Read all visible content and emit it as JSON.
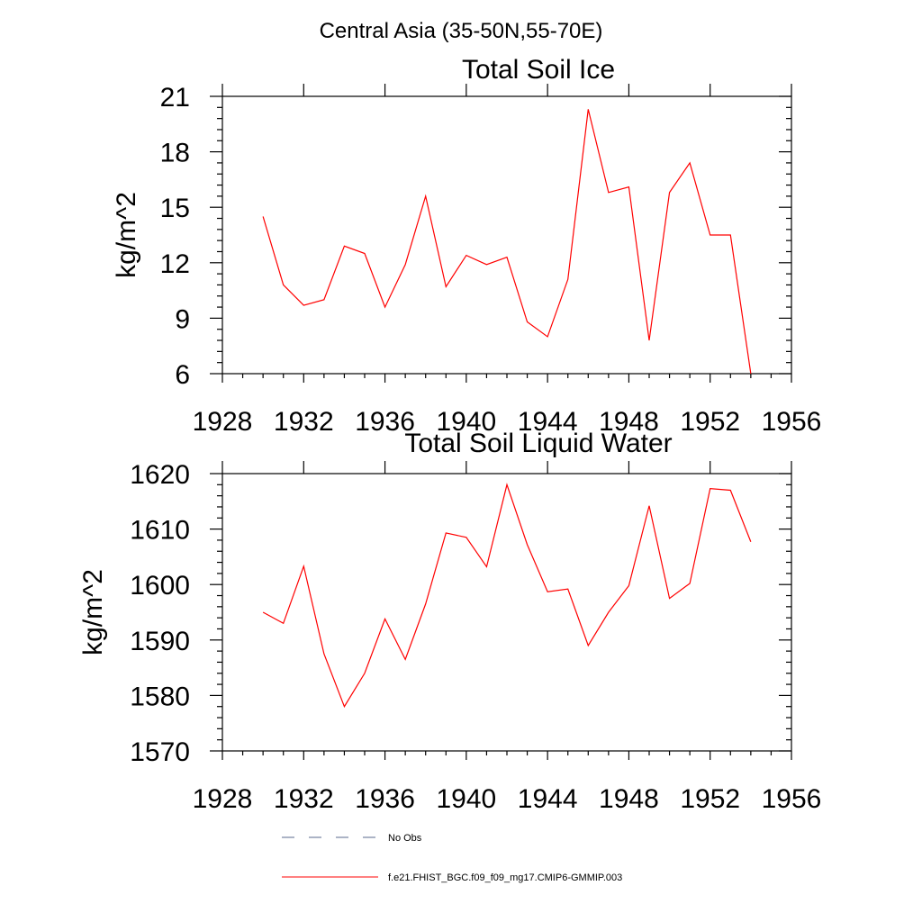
{
  "suptitle": "Central Asia (35-50N,55-70E)",
  "legend": {
    "items": [
      {
        "label": "No Obs",
        "color": "#5a6a8c",
        "style": "dashed"
      },
      {
        "label": "f.e21.FHIST_BGC.f09_f09_mg17.CMIP6-GMMIP.003",
        "color": "#ff0000",
        "style": "solid"
      }
    ]
  },
  "chart_data": [
    {
      "type": "line",
      "title": "Total Soil Ice",
      "xlabel": "",
      "ylabel": "kg/m^2",
      "xlim": [
        1928,
        1956
      ],
      "ylim": [
        6,
        21
      ],
      "xticks": [
        1928,
        1932,
        1936,
        1940,
        1944,
        1948,
        1952,
        1956
      ],
      "yticks": [
        6,
        9,
        12,
        15,
        18,
        21
      ],
      "grid": false,
      "series": [
        {
          "name": "f.e21.FHIST_BGC.f09_f09_mg17.CMIP6-GMMIP.003",
          "color": "#ff0000",
          "x": [
            1930,
            1931,
            1932,
            1933,
            1934,
            1935,
            1936,
            1937,
            1938,
            1939,
            1940,
            1941,
            1942,
            1943,
            1944,
            1945,
            1946,
            1947,
            1948,
            1949,
            1950,
            1951,
            1952,
            1953,
            1954
          ],
          "values": [
            14.5,
            10.8,
            9.7,
            10.0,
            12.9,
            12.5,
            9.6,
            11.9,
            15.6,
            10.7,
            12.4,
            11.9,
            12.3,
            8.8,
            8.0,
            11.1,
            20.3,
            15.8,
            16.1,
            7.8,
            15.8,
            17.4,
            13.5,
            13.5,
            6.0
          ]
        }
      ]
    },
    {
      "type": "line",
      "title": "Total Soil Liquid Water",
      "xlabel": "",
      "ylabel": "kg/m^2",
      "xlim": [
        1928,
        1956
      ],
      "ylim": [
        1570,
        1620
      ],
      "xticks": [
        1928,
        1932,
        1936,
        1940,
        1944,
        1948,
        1952,
        1956
      ],
      "yticks": [
        1570,
        1580,
        1590,
        1600,
        1610,
        1620
      ],
      "grid": false,
      "series": [
        {
          "name": "f.e21.FHIST_BGC.f09_f09_mg17.CMIP6-GMMIP.003",
          "color": "#ff0000",
          "x": [
            1930,
            1931,
            1932,
            1933,
            1934,
            1935,
            1936,
            1937,
            1938,
            1939,
            1940,
            1941,
            1942,
            1943,
            1944,
            1945,
            1946,
            1947,
            1948,
            1949,
            1950,
            1951,
            1952,
            1953,
            1954
          ],
          "values": [
            1595,
            1593,
            1603.3,
            1587.5,
            1578,
            1584,
            1593.8,
            1586.5,
            1596.5,
            1609.3,
            1608.5,
            1603.2,
            1618,
            1607.2,
            1598.7,
            1599.2,
            1589,
            1595,
            1599.8,
            1614.2,
            1597.5,
            1600.2,
            1617.3,
            1617,
            1607.7
          ]
        }
      ]
    }
  ]
}
